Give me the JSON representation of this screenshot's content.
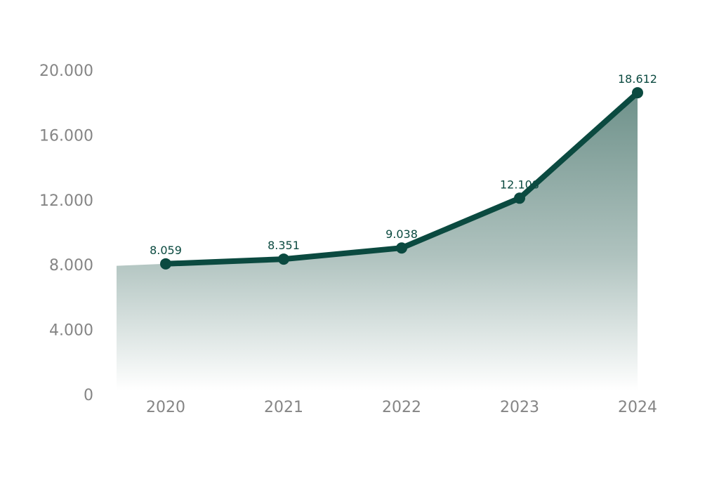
{
  "chart_data": {
    "type": "area",
    "categories": [
      "2020",
      "2021",
      "2022",
      "2023",
      "2024"
    ],
    "values": [
      8059,
      8351,
      9038,
      12108,
      18612
    ],
    "data_labels": [
      "8.059",
      "8.351",
      "9.038",
      "12.108",
      "18.612"
    ],
    "yticks": [
      0,
      4000,
      8000,
      12000,
      16000,
      20000
    ],
    "ytick_labels": [
      "0",
      "4.000",
      "8.000",
      "12.000",
      "16.000",
      "20.000"
    ],
    "ylim": [
      0,
      20000
    ],
    "grid": false,
    "legend": "none",
    "title": "",
    "xlabel": "",
    "ylabel": "",
    "colors": {
      "line": "#0b4a40",
      "fill": "#6e918a",
      "tick_text": "#858585",
      "label_text": "#0b4a40"
    }
  }
}
